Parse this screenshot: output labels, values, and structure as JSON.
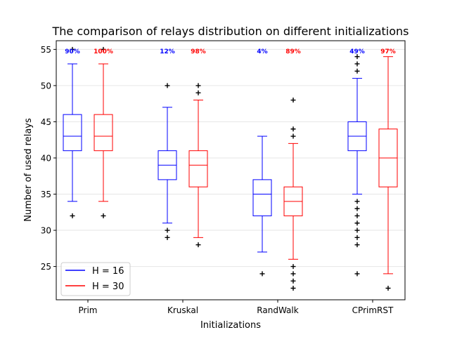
{
  "chart_data": {
    "type": "box",
    "title": "The comparison of relays distribution on different initializations",
    "xlabel": "Initializations",
    "ylabel": "Number of used relays",
    "ylim": [
      20.4,
      56.2
    ],
    "yticks": [
      25,
      30,
      35,
      40,
      45,
      50,
      55
    ],
    "grid": "horizontal",
    "legend_position": "lower-left",
    "categories": [
      "Prim",
      "Kruskal",
      "RandWalk",
      "CPrimRST"
    ],
    "series": [
      {
        "name": "H = 16",
        "color": "#0000ff",
        "boxes": [
          {
            "whislo": 34,
            "q1": 41,
            "med": 43,
            "q3": 46,
            "whishi": 53,
            "fliers": [
              32,
              55
            ],
            "pct": "90%"
          },
          {
            "whislo": 31,
            "q1": 37,
            "med": 39,
            "q3": 41,
            "whishi": 47,
            "fliers": [
              29,
              30,
              50
            ],
            "pct": "12%"
          },
          {
            "whislo": 27,
            "q1": 32,
            "med": 35,
            "q3": 37,
            "whishi": 43,
            "fliers": [
              24
            ],
            "pct": "4%"
          },
          {
            "whislo": 35,
            "q1": 41,
            "med": 43,
            "q3": 45,
            "whishi": 51,
            "fliers": [
              24,
              28,
              29,
              30,
              31,
              32,
              33,
              34,
              52,
              53,
              54
            ],
            "pct": "49%"
          }
        ]
      },
      {
        "name": "H = 30",
        "color": "#ff0000",
        "boxes": [
          {
            "whislo": 34,
            "q1": 41,
            "med": 43,
            "q3": 46,
            "whishi": 53,
            "fliers": [
              32,
              55
            ],
            "pct": "100%"
          },
          {
            "whislo": 29,
            "q1": 36,
            "med": 39,
            "q3": 41,
            "whishi": 48,
            "fliers": [
              28,
              49,
              50
            ],
            "pct": "98%"
          },
          {
            "whislo": 26,
            "q1": 32,
            "med": 34,
            "q3": 36,
            "whishi": 42,
            "fliers": [
              22,
              23,
              24,
              25,
              43,
              44,
              48
            ],
            "pct": "89%"
          },
          {
            "whislo": 24,
            "q1": 36,
            "med": 40,
            "q3": 44,
            "whishi": 54,
            "fliers": [
              22
            ],
            "pct": "97%"
          }
        ]
      }
    ]
  }
}
